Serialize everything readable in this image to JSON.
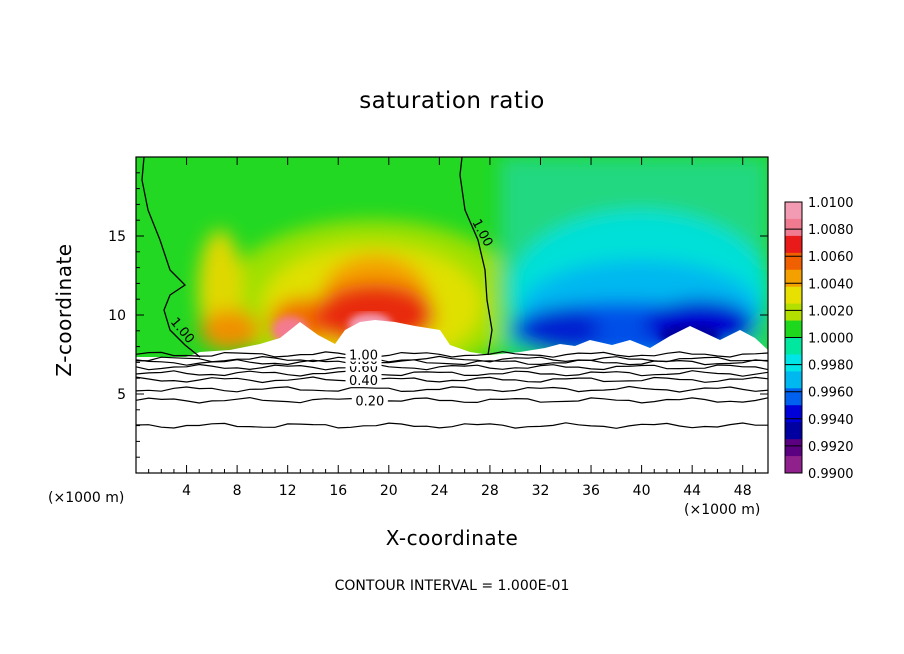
{
  "title": "saturation ratio",
  "footer": "CONTOUR INTERVAL = 1.000E-01",
  "chart_data": {
    "type": "heatmap",
    "xlabel": "X-coordinate",
    "ylabel": "Z-coordinate",
    "x_unit_left": "(×1000 m)",
    "x_unit_right": "(×1000 m)",
    "xlim": [
      0,
      50
    ],
    "ylim": [
      0,
      20
    ],
    "x_ticks": [
      4,
      8,
      12,
      16,
      20,
      24,
      28,
      32,
      36,
      40,
      44,
      48
    ],
    "y_ticks": [
      5,
      10,
      15
    ],
    "colorbar": {
      "levels": [
        "1.0100",
        "1.0080",
        "1.0060",
        "1.0040",
        "1.0020",
        "1.0000",
        "0.9980",
        "0.9960",
        "0.9940",
        "0.9920",
        "0.9900"
      ],
      "colors": [
        "#f49bb4",
        "#f07a90",
        "#e81a1a",
        "#f06000",
        "#f4a000",
        "#e8e000",
        "#b4e000",
        "#1ed81e",
        "#00e8a0",
        "#00e6e6",
        "#00b8f0",
        "#0060f0",
        "#0000d8",
        "#0000a0",
        "#5a0080",
        "#90208c"
      ]
    },
    "contours": [
      {
        "label": "0.20",
        "z": 4.6
      },
      {
        "label": "0.40",
        "z": 5.9
      },
      {
        "label": "0.60",
        "z": 6.7
      },
      {
        "label": "0.80",
        "z": 7.2
      },
      {
        "label": "1.00",
        "z": 7.5
      }
    ],
    "contour_label_top": "1.00"
  }
}
